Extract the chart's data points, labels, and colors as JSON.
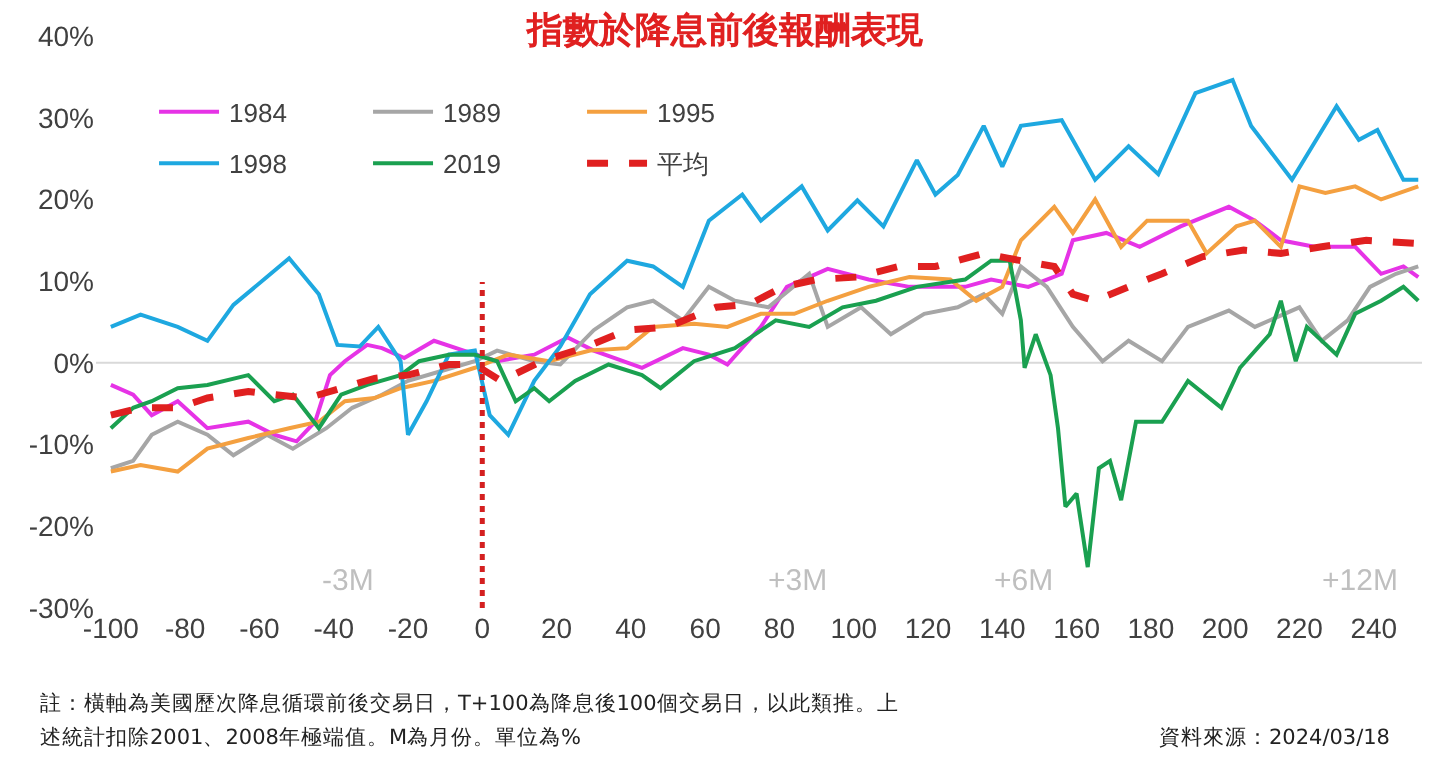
{
  "chart_data": {
    "type": "line",
    "title": "指數於降息前後報酬表現",
    "xlim": [
      -104,
      253
    ],
    "xticks": [
      -100,
      -80,
      -60,
      -40,
      -20,
      0,
      20,
      40,
      60,
      80,
      100,
      120,
      140,
      160,
      180,
      200,
      220,
      240
    ],
    "ylim": [
      -30,
      40
    ],
    "yticks": [
      {
        "value": -30,
        "label": "-30%"
      },
      {
        "value": -20,
        "label": "-20%"
      },
      {
        "value": -10,
        "label": "-10%"
      },
      {
        "value": 0,
        "label": "0%"
      },
      {
        "value": 10,
        "label": "10%"
      },
      {
        "value": 20,
        "label": "20%"
      },
      {
        "value": 30,
        "label": "30%"
      },
      {
        "value": 40,
        "label": "40%"
      }
    ],
    "grid": false,
    "legend": "top left",
    "series": [
      {
        "name": "1984",
        "color": "#e633e6",
        "x": [
          -100,
          -94,
          -89,
          -82,
          -74,
          -63,
          -56,
          -50,
          -45,
          -41,
          -37,
          -31,
          -27,
          -21,
          -13,
          -5,
          4,
          14,
          23,
          30,
          43,
          54,
          61,
          66,
          75,
          82,
          93,
          104,
          115,
          130,
          137,
          147,
          156,
          159,
          168,
          177,
          188,
          201,
          208,
          215,
          224,
          235,
          242,
          248,
          252
        ],
        "values": [
          -2.7,
          -3.9,
          -6.4,
          -4.7,
          -8,
          -7.2,
          -8.8,
          -9.6,
          -7.2,
          -1.5,
          0.2,
          2.2,
          1.8,
          0.6,
          2.7,
          1.5,
          0.2,
          1,
          3.1,
          1.5,
          -0.6,
          1.8,
          1,
          -0.2,
          4.4,
          9.3,
          11.5,
          10.2,
          9.3,
          9.3,
          10.2,
          9.3,
          10.9,
          15,
          15.9,
          14.2,
          16.7,
          19.1,
          17.4,
          15,
          14.2,
          14.2,
          10.9,
          11.8,
          10.5
        ]
      },
      {
        "name": "1989",
        "color": "#a6a6a6",
        "x": [
          -100,
          -94,
          -89,
          -82,
          -74,
          -67,
          -58,
          -51,
          -42,
          -35,
          -27,
          -20,
          -11,
          -2,
          4,
          14,
          21,
          30,
          39,
          46,
          54,
          61,
          68,
          77,
          88,
          93,
          102,
          110,
          119,
          128,
          135,
          140,
          145,
          152,
          159,
          167,
          174,
          183,
          190,
          201,
          208,
          220,
          226,
          233,
          239,
          246,
          252
        ],
        "values": [
          -12.9,
          -12,
          -8.8,
          -7.2,
          -8.8,
          -11.3,
          -8.8,
          -10.5,
          -8,
          -5.5,
          -3.9,
          -2.2,
          -1,
          0.2,
          1.5,
          0.2,
          -0.2,
          4,
          6.8,
          7.6,
          5.2,
          9.3,
          7.6,
          6.8,
          10.9,
          4.4,
          6.8,
          3.5,
          6,
          6.8,
          8.4,
          6,
          11.8,
          9.3,
          4.4,
          0.2,
          2.7,
          0.2,
          4.4,
          6.4,
          4.4,
          6.8,
          2.7,
          5.2,
          9.3,
          10.9,
          11.8
        ]
      },
      {
        "name": "1995",
        "color": "#f4a040",
        "x": [
          -100,
          -92,
          -82,
          -74,
          -63,
          -52,
          -44,
          -37,
          -29,
          -22,
          -13,
          -2,
          7,
          18,
          29,
          39,
          46,
          57,
          66,
          75,
          84,
          93,
          104,
          115,
          126,
          133,
          140,
          145,
          154,
          159,
          165,
          172,
          179,
          190,
          195,
          203,
          208,
          215,
          220,
          227,
          235,
          242,
          252
        ],
        "values": [
          -13.3,
          -12.5,
          -13.3,
          -10.5,
          -9.2,
          -8,
          -7.2,
          -4.7,
          -4.3,
          -3.1,
          -2.2,
          -0.6,
          1,
          0.2,
          1.5,
          1.8,
          4.4,
          4.8,
          4.4,
          6,
          6,
          7.6,
          9.3,
          10.5,
          10.2,
          7.6,
          9.3,
          15,
          19.1,
          15.9,
          20,
          14.2,
          17.4,
          17.4,
          13.4,
          16.7,
          17.4,
          14.2,
          21.6,
          20.8,
          21.6,
          20,
          21.6
        ]
      },
      {
        "name": "1998",
        "color": "#1ea8e0",
        "x": [
          -100,
          -92,
          -82,
          -74,
          -67,
          -58,
          -52,
          -44,
          -39,
          -33,
          -28,
          -22,
          -20,
          -15,
          -9,
          -2,
          2,
          7,
          14,
          21,
          29,
          39,
          46,
          54,
          61,
          70,
          75,
          86,
          93,
          101,
          108,
          117,
          122,
          128,
          135,
          140,
          145,
          156,
          165,
          174,
          182,
          192,
          202,
          207,
          218,
          230,
          236,
          241,
          248,
          252
        ],
        "values": [
          4.4,
          5.9,
          4.4,
          2.7,
          7.1,
          10.5,
          12.8,
          8.4,
          2.2,
          2,
          4.4,
          0.2,
          -8.8,
          -4.7,
          1,
          1.5,
          -6.4,
          -8.8,
          -2.2,
          2,
          8.4,
          12.5,
          11.8,
          9.3,
          17.4,
          20.6,
          17.4,
          21.6,
          16.2,
          19.9,
          16.7,
          24.8,
          20.6,
          23,
          29,
          24,
          29,
          29.7,
          22.4,
          26.5,
          23.1,
          33,
          34.6,
          29,
          22.4,
          31.4,
          27.3,
          28.5,
          22.4,
          22.4
        ]
      },
      {
        "name": "2019",
        "color": "#1aa050",
        "x": [
          -100,
          -94,
          -89,
          -82,
          -74,
          -63,
          -56,
          -51,
          -44,
          -38,
          -31,
          -22,
          -17,
          -9,
          -2,
          4,
          9,
          14,
          18,
          25,
          34,
          43,
          48,
          57,
          68,
          79,
          88,
          97,
          106,
          117,
          130,
          137,
          142,
          145,
          146,
          149,
          153,
          155,
          157,
          160,
          163,
          166,
          169,
          172,
          176,
          183,
          190,
          199,
          204,
          212,
          215,
          219,
          222,
          230,
          235,
          242,
          248,
          252
        ],
        "values": [
          -8,
          -5.5,
          -4.7,
          -3.1,
          -2.7,
          -1.5,
          -4.7,
          -3.9,
          -8,
          -3.9,
          -2.7,
          -1.5,
          0.2,
          1,
          1,
          0.2,
          -4.7,
          -3.1,
          -4.7,
          -2.2,
          -0.2,
          -1.5,
          -3.1,
          0.2,
          1.8,
          5.2,
          4.4,
          6.8,
          7.6,
          9.3,
          10.2,
          12.5,
          12.5,
          5.2,
          -0.6,
          3.5,
          -1.5,
          -8,
          -17.6,
          -16,
          -25,
          -12.9,
          -12,
          -16.8,
          -7.2,
          -7.2,
          -2.2,
          -5.5,
          -0.6,
          3.5,
          7.6,
          0.2,
          4.4,
          1,
          6,
          7.6,
          9.3,
          7.6
        ]
      },
      {
        "name": "平均",
        "color": "#e02020",
        "line_style": "dashed",
        "x": [
          -100,
          -92,
          -82,
          -74,
          -63,
          -56,
          -47,
          -38,
          -29,
          -20,
          -9,
          -2,
          5,
          16,
          27,
          39,
          50,
          63,
          72,
          81,
          90,
          101,
          112,
          122,
          135,
          145,
          154,
          159,
          165,
          174,
          183,
          194,
          205,
          215,
          226,
          238,
          252
        ],
        "values": [
          -6.4,
          -5.5,
          -5.5,
          -4.3,
          -3.5,
          -3.9,
          -4.3,
          -3.1,
          -1.9,
          -1.5,
          -0.2,
          -0.2,
          -2.2,
          0.2,
          1.8,
          4,
          4.4,
          6.8,
          7.2,
          9.3,
          10.2,
          10.5,
          11.8,
          11.8,
          13.4,
          12.5,
          11.8,
          8.4,
          7.6,
          9.3,
          10.9,
          13,
          13.8,
          13.4,
          14.2,
          15,
          14.6
        ]
      }
    ],
    "ref_lines": [
      {
        "axis": "x",
        "value": 0,
        "color": "#d42020",
        "line_style": "dotted"
      },
      {
        "axis": "y",
        "value": 0,
        "color": "#d9d9d9"
      }
    ],
    "annotations": [
      "-3M",
      "+3M",
      "+6M",
      "+12M",
      "註：橫軸為美國歷次降息循環前後交易日，T+100為降息後100個交易日，以此類推。上述統計扣除2001、2008年極端值。M為月份。單位為%",
      "資料來源：2024/03/18"
    ]
  }
}
